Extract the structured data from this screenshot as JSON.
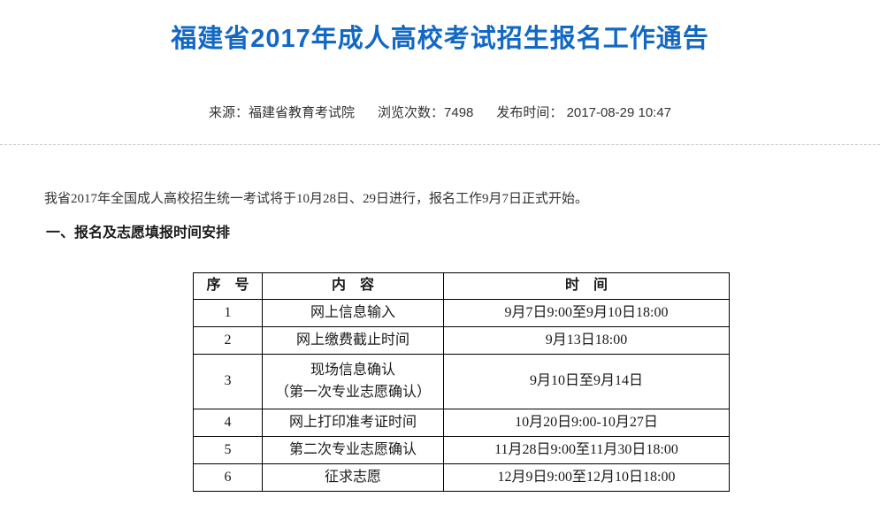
{
  "theme": {
    "accent": "#1268c3",
    "tableBorder": "#000000",
    "dividerColor": "#c9c9c9"
  },
  "page": {
    "title": "福建省2017年成人高校考试招生报名工作通告"
  },
  "meta": {
    "source_label": "来源：",
    "source_value": "福建省教育考试院",
    "views_label": "浏览次数：",
    "views_value": "7498",
    "publish_label": "发布时间：",
    "publish_value": "2017-08-29 10:47"
  },
  "content": {
    "intro": "我省2017年全国成人高校招生统一考试将于10月28日、29日进行，报名工作9月7日正式开始。",
    "section1_heading": "一、报名及志愿填报时间安排"
  },
  "schedule_table": {
    "headers": [
      "序　号",
      "内　容",
      "时　间"
    ],
    "rows": [
      {
        "no": "1",
        "content": "网上信息输入",
        "time": "9月7日9:00至9月10日18:00"
      },
      {
        "no": "2",
        "content": "网上缴费截止时间",
        "time": "9月13日18:00"
      },
      {
        "no": "3",
        "content": "现场信息确认",
        "content_line2": "（第一次专业志愿确认）",
        "time": "9月10日至9月14日"
      },
      {
        "no": "4",
        "content": "网上打印准考证时间",
        "time": "10月20日9:00-10月27日"
      },
      {
        "no": "5",
        "content": "第二次专业志愿确认",
        "time": "11月28日9:00至11月30日18:00"
      },
      {
        "no": "6",
        "content": "征求志愿",
        "time": "12月9日9:00至12月10日18:00"
      }
    ]
  }
}
